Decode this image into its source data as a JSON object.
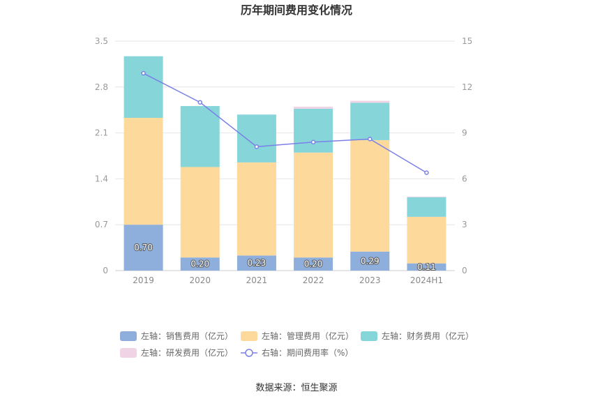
{
  "chart_data": {
    "type": "bar",
    "title": "历年期间费用变化情况",
    "categories": [
      "2019",
      "2020",
      "2021",
      "2022",
      "2023",
      "2024H1"
    ],
    "series": [
      {
        "name": "左轴：销售费用（亿元）",
        "kind": "bar",
        "axis": "left",
        "color": "#8eaedb",
        "values": [
          0.7,
          0.2,
          0.23,
          0.2,
          0.29,
          0.11
        ],
        "labels": [
          "0.70",
          "0.20",
          "0.23",
          "0.20",
          "0.29",
          "0.11"
        ]
      },
      {
        "name": "左轴：管理费用（亿元）",
        "kind": "bar",
        "axis": "left",
        "color": "#fdd99b",
        "values": [
          1.63,
          1.38,
          1.42,
          1.6,
          1.7,
          0.71
        ]
      },
      {
        "name": "左轴：财务费用（亿元）",
        "kind": "bar",
        "axis": "left",
        "color": "#86d5d9",
        "values": [
          0.94,
          0.93,
          0.73,
          0.67,
          0.57,
          0.3
        ]
      },
      {
        "name": "左轴：研发费用（亿元）",
        "kind": "bar",
        "axis": "left",
        "color": "#f1d3e6",
        "values": [
          0.0,
          0.0,
          0.0,
          0.03,
          0.03,
          0.01
        ]
      },
      {
        "name": "右轴：期间费用率（%）",
        "kind": "line",
        "axis": "right",
        "color": "#7b7fe8",
        "values": [
          12.9,
          11.0,
          8.1,
          8.4,
          8.6,
          6.4
        ]
      }
    ],
    "y_left": {
      "min": 0,
      "max": 3.5,
      "ticks": [
        "0",
        "0.7",
        "1.4",
        "2.1",
        "2.8",
        "3.5"
      ]
    },
    "y_right": {
      "min": 0,
      "max": 15,
      "ticks": [
        "0",
        "3",
        "6",
        "9",
        "12",
        "15"
      ]
    },
    "grid": true,
    "legend_position": "bottom"
  },
  "source": "数据来源：恒生聚源"
}
